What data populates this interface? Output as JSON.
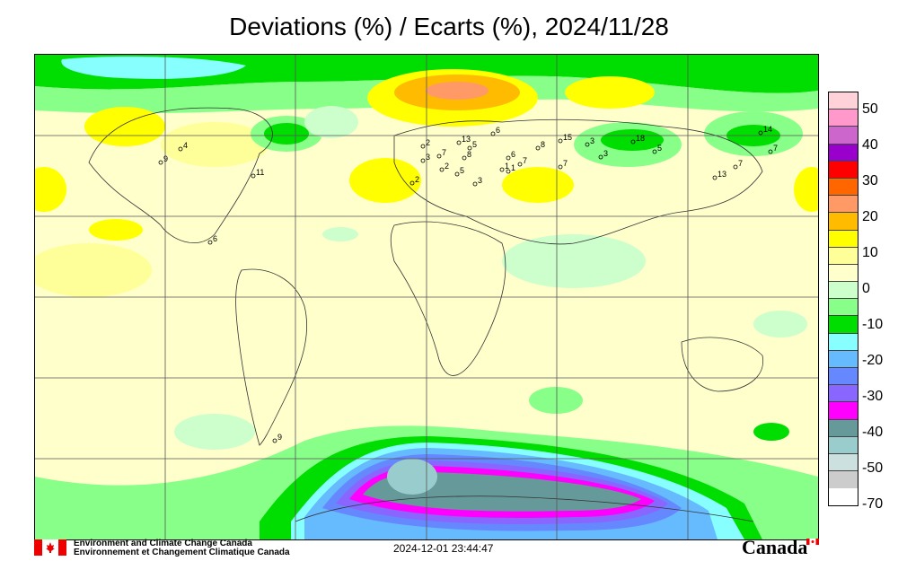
{
  "title": "Deviations (%) / Ecarts (%), 2024/11/28",
  "legend": {
    "colors": [
      "#ffd1d8",
      "#ff99cc",
      "#cc66cc",
      "#9900cc",
      "#ff0000",
      "#ff6600",
      "#ff9966",
      "#ffbb00",
      "#ffff00",
      "#ffff99",
      "#ffffcc",
      "#ccffcc",
      "#88ff88",
      "#00dd00",
      "#88ffff",
      "#66bbff",
      "#6688ff",
      "#8866ff",
      "#ff00ff",
      "#669999",
      "#99cccc",
      "#cce0e0",
      "#cccccc"
    ],
    "labels": [
      "50",
      "40",
      "30",
      "20",
      "10",
      "0",
      "-10",
      "-20",
      "-30",
      "-40",
      "-50",
      "-70"
    ]
  },
  "stations": [
    {
      "label": "9"
    },
    {
      "label": "4"
    },
    {
      "label": "11"
    },
    {
      "label": "2"
    },
    {
      "label": "13"
    },
    {
      "label": "7"
    },
    {
      "label": "3"
    },
    {
      "label": "5"
    },
    {
      "label": "8"
    },
    {
      "label": "6"
    },
    {
      "label": "2"
    },
    {
      "label": "5"
    },
    {
      "label": "3"
    },
    {
      "label": "2"
    },
    {
      "label": "6"
    },
    {
      "label": "8"
    },
    {
      "label": "15"
    },
    {
      "label": "3"
    },
    {
      "label": "18"
    },
    {
      "label": "5"
    },
    {
      "label": "7"
    },
    {
      "label": "1"
    },
    {
      "label": "1"
    },
    {
      "label": "7"
    },
    {
      "label": "3"
    },
    {
      "label": "13"
    },
    {
      "label": "7"
    },
    {
      "label": "14"
    },
    {
      "label": "7"
    },
    {
      "label": "9"
    },
    {
      "label": "6"
    }
  ],
  "footer": {
    "org_en": "Environment and Climate Change Canada",
    "org_fr": "Environnement et Changement Climatique Canada",
    "timestamp": "2024-12-01 23:44:47",
    "wordmark": "Canada"
  }
}
